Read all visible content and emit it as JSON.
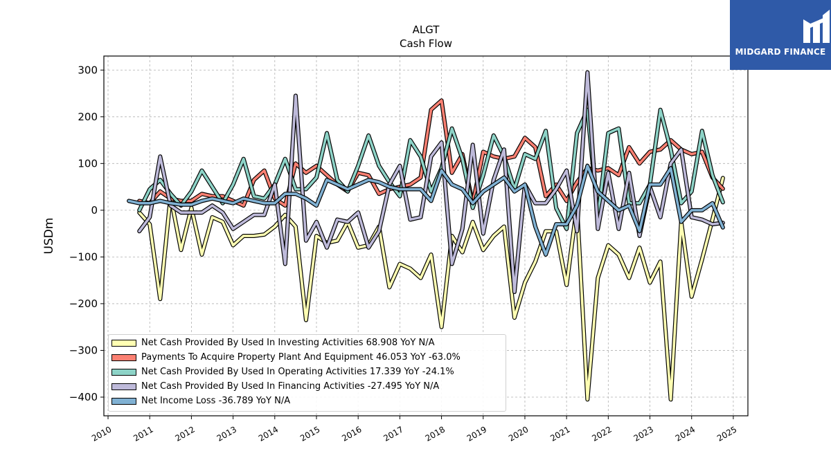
{
  "chart_data": {
    "type": "line",
    "title": "ALGT",
    "subtitle": "Cash Flow",
    "ylabel": "USDm",
    "xlabel": "",
    "ylim": [
      -440,
      330
    ],
    "xlim": [
      2009.9,
      2025.35
    ],
    "yticks": [
      300,
      200,
      100,
      0,
      -100,
      -200,
      -300,
      -400
    ],
    "ytick_labels": [
      "300",
      "200",
      "100",
      "0",
      "−100",
      "−200",
      "−300",
      "−400"
    ],
    "xticks": [
      2010,
      2011,
      2012,
      2013,
      2014,
      2015,
      2016,
      2017,
      2018,
      2019,
      2020,
      2021,
      2022,
      2023,
      2024,
      2025
    ],
    "xtick_labels": [
      "2010",
      "2011",
      "2012",
      "2013",
      "2014",
      "2015",
      "2016",
      "2017",
      "2018",
      "2019",
      "2020",
      "2021",
      "2022",
      "2023",
      "2024",
      "2025"
    ],
    "grid": true,
    "legend_position": "bottom-left",
    "series": [
      {
        "name": "Net Cash Provided By Used In Investing Activities",
        "legend_label": "Net Cash Provided By Used In Investing Activities  68.908 YoY N/A",
        "color": "#ffffb3",
        "points": [
          [
            2010.75,
            -5
          ],
          [
            2011.0,
            -30
          ],
          [
            2011.25,
            -190
          ],
          [
            2011.5,
            30
          ],
          [
            2011.75,
            -85
          ],
          [
            2012.0,
            5
          ],
          [
            2012.25,
            -95
          ],
          [
            2012.5,
            -15
          ],
          [
            2012.75,
            -25
          ],
          [
            2013.0,
            -75
          ],
          [
            2013.25,
            -55
          ],
          [
            2013.5,
            -55
          ],
          [
            2013.75,
            -52
          ],
          [
            2014.0,
            -35
          ],
          [
            2014.25,
            -10
          ],
          [
            2014.5,
            -35
          ],
          [
            2014.75,
            -235
          ],
          [
            2015.0,
            -55
          ],
          [
            2015.25,
            -70
          ],
          [
            2015.5,
            -65
          ],
          [
            2015.75,
            -25
          ],
          [
            2016.0,
            -80
          ],
          [
            2016.25,
            -75
          ],
          [
            2016.5,
            -35
          ],
          [
            2016.75,
            -165
          ],
          [
            2017.0,
            -115
          ],
          [
            2017.25,
            -125
          ],
          [
            2017.5,
            -145
          ],
          [
            2017.75,
            -95
          ],
          [
            2018.0,
            -250
          ],
          [
            2018.25,
            -55
          ],
          [
            2018.5,
            -90
          ],
          [
            2018.75,
            -25
          ],
          [
            2019.0,
            -85
          ],
          [
            2019.25,
            -55
          ],
          [
            2019.5,
            -35
          ],
          [
            2019.75,
            -230
          ],
          [
            2020.0,
            -155
          ],
          [
            2020.25,
            -110
          ],
          [
            2020.5,
            -45
          ],
          [
            2020.75,
            -45
          ],
          [
            2021.0,
            -160
          ],
          [
            2021.25,
            10
          ],
          [
            2021.5,
            -405
          ],
          [
            2021.75,
            -145
          ],
          [
            2022.0,
            -75
          ],
          [
            2022.25,
            -95
          ],
          [
            2022.5,
            -145
          ],
          [
            2022.75,
            -80
          ],
          [
            2023.0,
            -155
          ],
          [
            2023.25,
            -110
          ],
          [
            2023.5,
            -405
          ],
          [
            2023.75,
            -25
          ],
          [
            2024.0,
            -185
          ],
          [
            2024.25,
            -105
          ],
          [
            2024.5,
            -20
          ],
          [
            2024.75,
            69
          ]
        ]
      },
      {
        "name": "Payments To Acquire Property Plant And Equipment",
        "legend_label": "Payments To Acquire Property Plant And Equipment  46.053 YoY -63.0%",
        "color": "#fb8072",
        "points": [
          [
            2010.75,
            20
          ],
          [
            2011.0,
            15
          ],
          [
            2011.25,
            40
          ],
          [
            2011.5,
            25
          ],
          [
            2011.75,
            20
          ],
          [
            2012.0,
            20
          ],
          [
            2012.25,
            35
          ],
          [
            2012.5,
            30
          ],
          [
            2012.75,
            30
          ],
          [
            2013.0,
            20
          ],
          [
            2013.25,
            10
          ],
          [
            2013.5,
            65
          ],
          [
            2013.75,
            85
          ],
          [
            2014.0,
            25
          ],
          [
            2014.25,
            10
          ],
          [
            2014.5,
            100
          ],
          [
            2014.75,
            80
          ],
          [
            2015.0,
            95
          ],
          [
            2015.25,
            75
          ],
          [
            2015.5,
            55
          ],
          [
            2015.75,
            40
          ],
          [
            2016.0,
            80
          ],
          [
            2016.25,
            75
          ],
          [
            2016.5,
            35
          ],
          [
            2016.75,
            45
          ],
          [
            2017.0,
            50
          ],
          [
            2017.25,
            55
          ],
          [
            2017.5,
            70
          ],
          [
            2017.75,
            215
          ],
          [
            2018.0,
            235
          ],
          [
            2018.25,
            80
          ],
          [
            2018.5,
            120
          ],
          [
            2018.75,
            15
          ],
          [
            2019.0,
            125
          ],
          [
            2019.25,
            115
          ],
          [
            2019.5,
            110
          ],
          [
            2019.75,
            115
          ],
          [
            2020.0,
            155
          ],
          [
            2020.25,
            135
          ],
          [
            2020.5,
            30
          ],
          [
            2020.75,
            55
          ],
          [
            2021.0,
            20
          ],
          [
            2021.25,
            60
          ],
          [
            2021.5,
            90
          ],
          [
            2021.75,
            85
          ],
          [
            2022.0,
            90
          ],
          [
            2022.25,
            75
          ],
          [
            2022.5,
            135
          ],
          [
            2022.75,
            100
          ],
          [
            2023.0,
            125
          ],
          [
            2023.25,
            130
          ],
          [
            2023.5,
            150
          ],
          [
            2023.75,
            130
          ],
          [
            2024.0,
            120
          ],
          [
            2024.25,
            125
          ],
          [
            2024.5,
            70
          ],
          [
            2024.75,
            46
          ]
        ]
      },
      {
        "name": "Net Cash Provided By Used In Operating Activities",
        "legend_label": "Net Cash Provided By Used In Operating Activities  17.339 YoY -24.1%",
        "color": "#8dd3c7",
        "points": [
          [
            2010.75,
            0
          ],
          [
            2011.0,
            45
          ],
          [
            2011.25,
            65
          ],
          [
            2011.5,
            35
          ],
          [
            2011.75,
            10
          ],
          [
            2012.0,
            40
          ],
          [
            2012.25,
            85
          ],
          [
            2012.5,
            50
          ],
          [
            2012.75,
            15
          ],
          [
            2013.0,
            55
          ],
          [
            2013.25,
            110
          ],
          [
            2013.5,
            30
          ],
          [
            2013.75,
            25
          ],
          [
            2014.0,
            55
          ],
          [
            2014.25,
            110
          ],
          [
            2014.5,
            45
          ],
          [
            2014.75,
            45
          ],
          [
            2015.0,
            70
          ],
          [
            2015.25,
            165
          ],
          [
            2015.5,
            65
          ],
          [
            2015.75,
            40
          ],
          [
            2016.0,
            95
          ],
          [
            2016.25,
            160
          ],
          [
            2016.5,
            95
          ],
          [
            2016.75,
            60
          ],
          [
            2017.0,
            30
          ],
          [
            2017.25,
            150
          ],
          [
            2017.5,
            115
          ],
          [
            2017.75,
            40
          ],
          [
            2018.0,
            90
          ],
          [
            2018.25,
            175
          ],
          [
            2018.5,
            110
          ],
          [
            2018.75,
            5
          ],
          [
            2019.0,
            75
          ],
          [
            2019.25,
            160
          ],
          [
            2019.5,
            115
          ],
          [
            2019.75,
            45
          ],
          [
            2020.0,
            120
          ],
          [
            2020.25,
            110
          ],
          [
            2020.5,
            170
          ],
          [
            2020.75,
            5
          ],
          [
            2021.0,
            -40
          ],
          [
            2021.25,
            165
          ],
          [
            2021.5,
            215
          ],
          [
            2021.75,
            -15
          ],
          [
            2022.0,
            165
          ],
          [
            2022.25,
            175
          ],
          [
            2022.5,
            15
          ],
          [
            2022.75,
            15
          ],
          [
            2023.0,
            55
          ],
          [
            2023.25,
            215
          ],
          [
            2023.5,
            130
          ],
          [
            2023.75,
            15
          ],
          [
            2024.0,
            40
          ],
          [
            2024.25,
            170
          ],
          [
            2024.5,
            75
          ],
          [
            2024.75,
            17
          ]
        ]
      },
      {
        "name": "Net Cash Provided By Used In Financing Activities",
        "legend_label": "Net Cash Provided By Used In Financing Activities  -27.495 YoY N/A",
        "color": "#bebada",
        "points": [
          [
            2010.75,
            -45
          ],
          [
            2011.0,
            -15
          ],
          [
            2011.25,
            115
          ],
          [
            2011.5,
            10
          ],
          [
            2011.75,
            -5
          ],
          [
            2012.0,
            -5
          ],
          [
            2012.25,
            -5
          ],
          [
            2012.5,
            10
          ],
          [
            2012.75,
            -5
          ],
          [
            2013.0,
            -40
          ],
          [
            2013.25,
            -25
          ],
          [
            2013.5,
            -10
          ],
          [
            2013.75,
            -10
          ],
          [
            2014.0,
            55
          ],
          [
            2014.25,
            -115
          ],
          [
            2014.5,
            245
          ],
          [
            2014.75,
            -65
          ],
          [
            2015.0,
            -25
          ],
          [
            2015.25,
            -80
          ],
          [
            2015.5,
            -20
          ],
          [
            2015.75,
            -25
          ],
          [
            2016.0,
            -5
          ],
          [
            2016.25,
            -80
          ],
          [
            2016.5,
            -45
          ],
          [
            2016.75,
            55
          ],
          [
            2017.0,
            95
          ],
          [
            2017.25,
            -20
          ],
          [
            2017.5,
            -15
          ],
          [
            2017.75,
            115
          ],
          [
            2018.0,
            145
          ],
          [
            2018.25,
            -115
          ],
          [
            2018.5,
            -40
          ],
          [
            2018.75,
            140
          ],
          [
            2019.0,
            -50
          ],
          [
            2019.25,
            65
          ],
          [
            2019.5,
            130
          ],
          [
            2019.75,
            -175
          ],
          [
            2020.0,
            55
          ],
          [
            2020.25,
            15
          ],
          [
            2020.5,
            15
          ],
          [
            2020.75,
            45
          ],
          [
            2021.0,
            85
          ],
          [
            2021.25,
            -45
          ],
          [
            2021.5,
            295
          ],
          [
            2021.75,
            -40
          ],
          [
            2022.0,
            80
          ],
          [
            2022.25,
            -40
          ],
          [
            2022.5,
            80
          ],
          [
            2022.75,
            -55
          ],
          [
            2023.0,
            50
          ],
          [
            2023.25,
            -15
          ],
          [
            2023.5,
            100
          ],
          [
            2023.75,
            130
          ],
          [
            2024.0,
            -15
          ],
          [
            2024.25,
            -20
          ],
          [
            2024.5,
            -30
          ],
          [
            2024.75,
            -27
          ]
        ]
      },
      {
        "name": "Net Income Loss",
        "legend_label": "Net Income Loss  -36.789 YoY N/A",
        "color": "#80b1d3",
        "points": [
          [
            2010.5,
            20
          ],
          [
            2010.75,
            15
          ],
          [
            2011.0,
            15
          ],
          [
            2011.25,
            20
          ],
          [
            2011.5,
            15
          ],
          [
            2011.75,
            12
          ],
          [
            2012.0,
            12
          ],
          [
            2012.25,
            20
          ],
          [
            2012.5,
            25
          ],
          [
            2012.75,
            20
          ],
          [
            2013.0,
            15
          ],
          [
            2013.25,
            25
          ],
          [
            2013.5,
            20
          ],
          [
            2013.75,
            15
          ],
          [
            2014.0,
            15
          ],
          [
            2014.25,
            35
          ],
          [
            2014.5,
            35
          ],
          [
            2014.75,
            25
          ],
          [
            2015.0,
            10
          ],
          [
            2015.25,
            65
          ],
          [
            2015.5,
            55
          ],
          [
            2015.75,
            45
          ],
          [
            2016.0,
            55
          ],
          [
            2016.25,
            65
          ],
          [
            2016.5,
            60
          ],
          [
            2016.75,
            50
          ],
          [
            2017.0,
            45
          ],
          [
            2017.25,
            45
          ],
          [
            2017.5,
            45
          ],
          [
            2017.75,
            20
          ],
          [
            2018.0,
            85
          ],
          [
            2018.25,
            55
          ],
          [
            2018.5,
            45
          ],
          [
            2018.75,
            15
          ],
          [
            2019.0,
            40
          ],
          [
            2019.25,
            55
          ],
          [
            2019.5,
            70
          ],
          [
            2019.75,
            40
          ],
          [
            2020.0,
            55
          ],
          [
            2020.25,
            -35
          ],
          [
            2020.5,
            -95
          ],
          [
            2020.75,
            -30
          ],
          [
            2021.0,
            -30
          ],
          [
            2021.25,
            10
          ],
          [
            2021.5,
            95
          ],
          [
            2021.75,
            40
          ],
          [
            2022.0,
            20
          ],
          [
            2022.25,
            0
          ],
          [
            2022.5,
            10
          ],
          [
            2022.75,
            -45
          ],
          [
            2023.0,
            55
          ],
          [
            2023.25,
            55
          ],
          [
            2023.5,
            90
          ],
          [
            2023.75,
            -25
          ],
          [
            2024.0,
            0
          ],
          [
            2024.25,
            0
          ],
          [
            2024.5,
            15
          ],
          [
            2024.75,
            -37
          ]
        ]
      }
    ]
  },
  "logo": {
    "text": "MIDGARD FINANCE",
    "background": "#2f5aa8"
  }
}
